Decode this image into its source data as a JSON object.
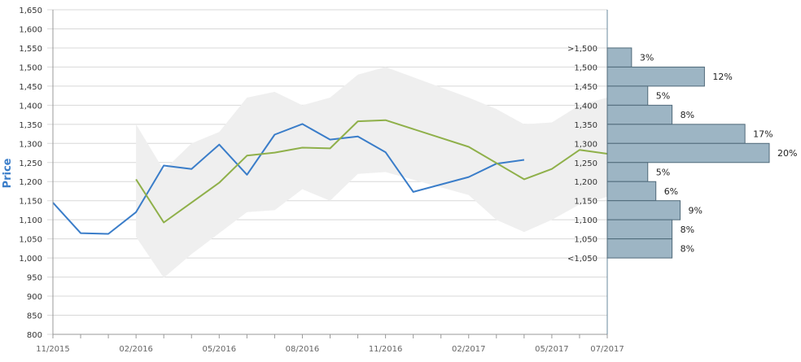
{
  "chart_data": {
    "type": "line",
    "ylabel": "Price",
    "ylim": [
      800,
      1650
    ],
    "y_ticks": [
      "800",
      "850",
      "900",
      "950",
      "1,000",
      "1,050",
      "1,100",
      "1,150",
      "1,200",
      "1,250",
      "1,300",
      "1,350",
      "1,400",
      "1,450",
      "1,500",
      "1,550",
      "1,600",
      "1,650"
    ],
    "x_range": [
      "2015-11",
      "2017-07"
    ],
    "x_ticks": [
      "11/2015",
      "02/2016",
      "05/2016",
      "08/2016",
      "11/2016",
      "02/2017",
      "05/2017",
      "07/2017"
    ],
    "grid": true,
    "colors": {
      "blue": "#3a7dc9",
      "green": "#8fb04a",
      "band": "#efefef",
      "bar_fill": "#9db5c4",
      "bar_stroke": "#506a7a"
    },
    "series": [
      {
        "color": "#3a7dc9",
        "points": [
          [
            "2015-11",
            1145
          ],
          [
            "2015-12",
            1065
          ],
          [
            "2016-01",
            1063
          ],
          [
            "2016-02",
            1120
          ],
          [
            "2016-03",
            1242
          ],
          [
            "2016-04",
            1233
          ],
          [
            "2016-05",
            1297
          ],
          [
            "2016-06",
            1218
          ],
          [
            "2016-07",
            1323
          ],
          [
            "2016-08",
            1351
          ],
          [
            "2016-09",
            1310
          ],
          [
            "2016-10",
            1318
          ],
          [
            "2016-11",
            1277
          ],
          [
            "2016-12",
            1173
          ],
          [
            "2017-02",
            1212
          ],
          [
            "2017-03",
            1247
          ],
          [
            "2017-04",
            1257
          ]
        ]
      },
      {
        "color": "#8fb04a",
        "points": [
          [
            "2016-02",
            1206
          ],
          [
            "2016-03",
            1093
          ],
          [
            "2016-05",
            1197
          ],
          [
            "2016-06",
            1268
          ],
          [
            "2016-07",
            1276
          ],
          [
            "2016-08",
            1289
          ],
          [
            "2016-09",
            1287
          ],
          [
            "2016-10",
            1358
          ],
          [
            "2016-11",
            1361
          ],
          [
            "2017-02",
            1291
          ],
          [
            "2017-04",
            1206
          ],
          [
            "2017-05",
            1233
          ],
          [
            "2017-06",
            1283
          ],
          [
            "2017-07",
            1273
          ]
        ]
      }
    ],
    "band": {
      "upper": [
        [
          "2016-02",
          1350
        ],
        [
          "2016-03",
          1230
        ],
        [
          "2016-04",
          1300
        ],
        [
          "2016-05",
          1330
        ],
        [
          "2016-06",
          1420
        ],
        [
          "2016-07",
          1435
        ],
        [
          "2016-08",
          1400
        ],
        [
          "2016-09",
          1420
        ],
        [
          "2016-10",
          1480
        ],
        [
          "2016-11",
          1500
        ],
        [
          "2017-02",
          1420
        ],
        [
          "2017-03",
          1390
        ],
        [
          "2017-04",
          1350
        ],
        [
          "2017-05",
          1355
        ],
        [
          "2017-06",
          1400
        ],
        [
          "2017-07",
          1420
        ]
      ],
      "lower": [
        [
          "2016-02",
          1055
        ],
        [
          "2016-03",
          948
        ],
        [
          "2016-04",
          1010
        ],
        [
          "2016-05",
          1065
        ],
        [
          "2016-06",
          1120
        ],
        [
          "2016-07",
          1125
        ],
        [
          "2016-08",
          1180
        ],
        [
          "2016-09",
          1150
        ],
        [
          "2016-10",
          1220
        ],
        [
          "2016-11",
          1225
        ],
        [
          "2017-02",
          1165
        ],
        [
          "2017-03",
          1100
        ],
        [
          "2017-04",
          1068
        ],
        [
          "2017-05",
          1100
        ],
        [
          "2017-06",
          1140
        ],
        [
          "2017-07",
          1160
        ]
      ]
    },
    "distribution": [
      {
        "label": ">1,500",
        "percent": 3,
        "text": "3%"
      },
      {
        "label": "1,500",
        "percent": 12,
        "text": "12%"
      },
      {
        "label": "1,450",
        "percent": 5,
        "text": "5%"
      },
      {
        "label": "1,400",
        "percent": 8,
        "text": "8%"
      },
      {
        "label": "1,350",
        "percent": 17,
        "text": "17%"
      },
      {
        "label": "1,300",
        "percent": 20,
        "text": "20%"
      },
      {
        "label": "1,250",
        "percent": 5,
        "text": "5%"
      },
      {
        "label": "1,200",
        "percent": 6,
        "text": "6%"
      },
      {
        "label": "1,150",
        "percent": 9,
        "text": "9%"
      },
      {
        "label": "1,100",
        "percent": 8,
        "text": "8%"
      },
      {
        "label": "1,050",
        "percent": 8,
        "text": "8%"
      },
      {
        "label": "<1,050",
        "percent": null,
        "text": ""
      }
    ]
  }
}
